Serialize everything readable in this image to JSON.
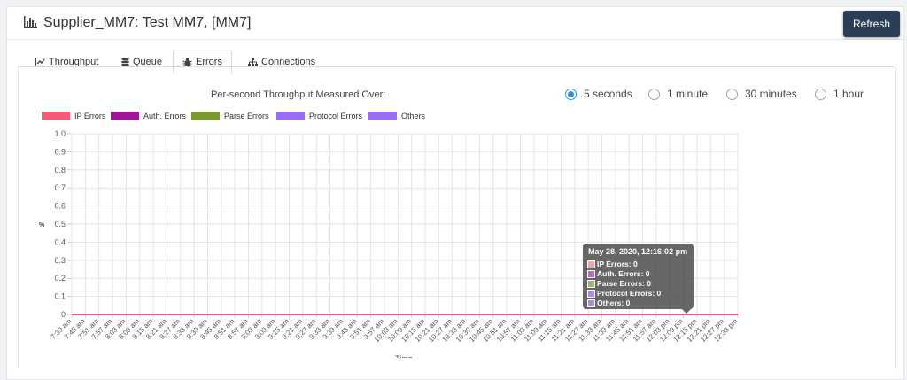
{
  "header": {
    "title": "Supplier_MM7: Test MM7, [MM7]",
    "title_icon": "bar-chart-icon",
    "refresh_label": "Refresh"
  },
  "tabs": [
    {
      "label": "Throughput",
      "icon": "line-chart-icon",
      "active": false
    },
    {
      "label": "Queue",
      "icon": "database-icon",
      "active": false
    },
    {
      "label": "Errors",
      "icon": "bug-icon",
      "active": true
    },
    {
      "label": "Connections",
      "icon": "sitemap-icon",
      "active": false
    }
  ],
  "throughput": {
    "label": "Per-second Throughput Measured Over:",
    "options": [
      {
        "label": "5 seconds",
        "selected": true
      },
      {
        "label": "1 minute",
        "selected": false
      },
      {
        "label": "30 minutes",
        "selected": false
      },
      {
        "label": "1 hour",
        "selected": false
      }
    ]
  },
  "chart_data": {
    "type": "line",
    "ylabel": "%",
    "xlabel": "Time",
    "ylim": [
      0,
      1
    ],
    "yticks": [
      "1.0",
      "0.9",
      "0.8",
      "0.7",
      "0.6",
      "0.5",
      "0.4",
      "0.3",
      "0.2",
      "0.1",
      "0"
    ],
    "grid": true,
    "legend_position": "top-left",
    "x": [
      "7:39 am",
      "7:45 am",
      "7:51 am",
      "7:57 am",
      "8:03 am",
      "8:09 am",
      "8:15 am",
      "8:21 am",
      "8:27 am",
      "8:33 am",
      "8:39 am",
      "8:45 am",
      "8:51 am",
      "8:57 am",
      "9:03 am",
      "9:09 am",
      "9:15 am",
      "9:21 am",
      "9:27 am",
      "9:33 am",
      "9:39 am",
      "9:45 am",
      "9:51 am",
      "9:57 am",
      "10:03 am",
      "10:09 am",
      "10:15 am",
      "10:21 am",
      "10:27 am",
      "10:33 am",
      "10:39 am",
      "10:45 am",
      "10:51 am",
      "10:57 am",
      "11:03 am",
      "11:09 am",
      "11:15 am",
      "11:21 am",
      "11:27 am",
      "11:33 am",
      "11:39 am",
      "11:45 am",
      "11:51 am",
      "11:57 am",
      "12:03 pm",
      "12:09 pm",
      "12:15 pm",
      "12:21 pm",
      "12:27 pm",
      "12:33 pm"
    ],
    "series": [
      {
        "name": "IP Errors",
        "color": "#f25c78",
        "values": [
          0,
          0,
          0,
          0,
          0,
          0,
          0,
          0,
          0,
          0,
          0,
          0,
          0,
          0,
          0,
          0,
          0,
          0,
          0,
          0,
          0,
          0,
          0,
          0,
          0,
          0,
          0,
          0,
          0,
          0,
          0,
          0,
          0,
          0,
          0,
          0,
          0,
          0,
          0,
          0,
          0,
          0,
          0,
          0,
          0,
          0,
          0,
          0,
          0,
          0
        ]
      },
      {
        "name": "Auth. Errors",
        "color": "#a0179b",
        "values": [
          0,
          0,
          0,
          0,
          0,
          0,
          0,
          0,
          0,
          0,
          0,
          0,
          0,
          0,
          0,
          0,
          0,
          0,
          0,
          0,
          0,
          0,
          0,
          0,
          0,
          0,
          0,
          0,
          0,
          0,
          0,
          0,
          0,
          0,
          0,
          0,
          0,
          0,
          0,
          0,
          0,
          0,
          0,
          0,
          0,
          0,
          0,
          0,
          0,
          0
        ]
      },
      {
        "name": "Parse Errors",
        "color": "#7a9a30",
        "values": [
          0,
          0,
          0,
          0,
          0,
          0,
          0,
          0,
          0,
          0,
          0,
          0,
          0,
          0,
          0,
          0,
          0,
          0,
          0,
          0,
          0,
          0,
          0,
          0,
          0,
          0,
          0,
          0,
          0,
          0,
          0,
          0,
          0,
          0,
          0,
          0,
          0,
          0,
          0,
          0,
          0,
          0,
          0,
          0,
          0,
          0,
          0,
          0,
          0,
          0
        ]
      },
      {
        "name": "Protocol Errors",
        "color": "#9b6cf5",
        "values": [
          0,
          0,
          0,
          0,
          0,
          0,
          0,
          0,
          0,
          0,
          0,
          0,
          0,
          0,
          0,
          0,
          0,
          0,
          0,
          0,
          0,
          0,
          0,
          0,
          0,
          0,
          0,
          0,
          0,
          0,
          0,
          0,
          0,
          0,
          0,
          0,
          0,
          0,
          0,
          0,
          0,
          0,
          0,
          0,
          0,
          0,
          0,
          0,
          0,
          0
        ]
      },
      {
        "name": "Others",
        "color": "#9b6cf5",
        "values": [
          0,
          0,
          0,
          0,
          0,
          0,
          0,
          0,
          0,
          0,
          0,
          0,
          0,
          0,
          0,
          0,
          0,
          0,
          0,
          0,
          0,
          0,
          0,
          0,
          0,
          0,
          0,
          0,
          0,
          0,
          0,
          0,
          0,
          0,
          0,
          0,
          0,
          0,
          0,
          0,
          0,
          0,
          0,
          0,
          0,
          0,
          0,
          0,
          0,
          0
        ]
      }
    ],
    "tooltip": {
      "title": "May 28, 2020, 12:16:02 pm",
      "rows": [
        {
          "text": "IP Errors: 0",
          "color": "#e8a8b0"
        },
        {
          "text": "Auth. Errors: 0",
          "color": "#b070b0"
        },
        {
          "text": "Parse Errors: 0",
          "color": "#a0b070"
        },
        {
          "text": "Protocol Errors: 0",
          "color": "#a890d8"
        },
        {
          "text": "Others: 0",
          "color": "#a890d8"
        }
      ]
    }
  }
}
